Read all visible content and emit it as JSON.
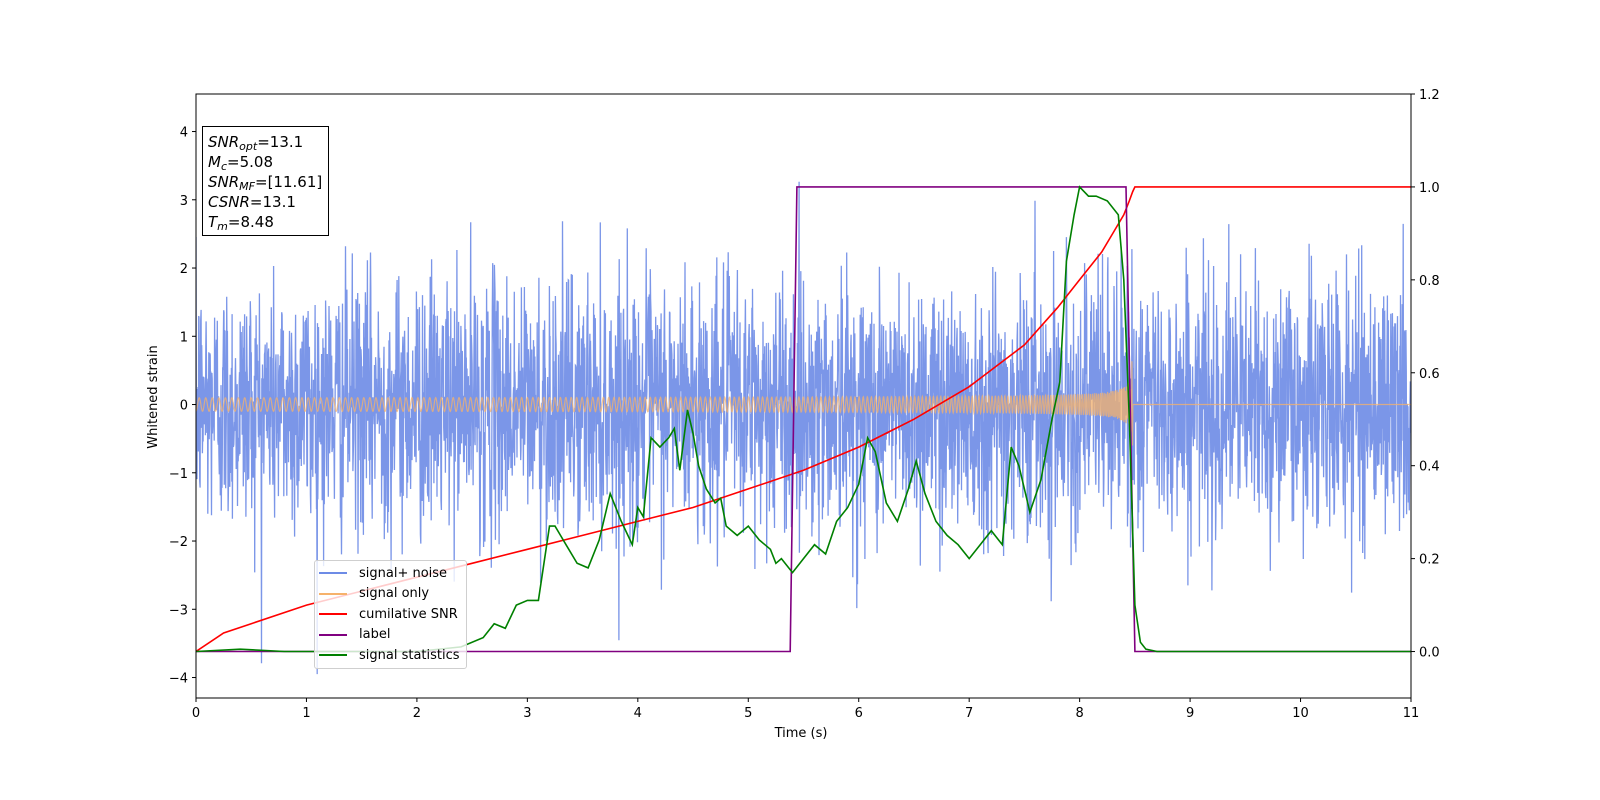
{
  "chart_data": {
    "type": "line",
    "xlabel": "Time (s)",
    "ylabel": "Whitened strain",
    "xlim": [
      0,
      11
    ],
    "ylim_left": [
      -4.3,
      4.55
    ],
    "ylim_right": [
      -0.1,
      1.2
    ],
    "xticks": [
      "0",
      "1",
      "2",
      "3",
      "4",
      "5",
      "6",
      "7",
      "8",
      "9",
      "10",
      "11"
    ],
    "yticks_left": [
      "−4",
      "−3",
      "−2",
      "−1",
      "0",
      "1",
      "2",
      "3",
      "4"
    ],
    "yticks_right": [
      "0.0",
      "0.2",
      "0.4",
      "0.6",
      "0.8",
      "1.0",
      "1.2"
    ],
    "legend_position": "lower-left",
    "grid": false,
    "annotations": {
      "snr_opt": "13.1",
      "mc": "5.08",
      "snr_mf": "[11.61]",
      "csnr": "13.1",
      "tm": "8.48"
    },
    "series": [
      {
        "name": "signal+ noise",
        "axis": "left",
        "color": "#6d8be6",
        "kind": "noise",
        "noise_std": 1.0,
        "signal_end_time": 8.48
      },
      {
        "name": "signal only",
        "axis": "left",
        "color": "#f6b26b",
        "kind": "chirp",
        "amplitude_start": 0.08,
        "amplitude_peak": 0.8,
        "merger_time": 8.48
      },
      {
        "name": "cumilative SNR",
        "axis": "right",
        "color": "#ff0000",
        "x": [
          0,
          0.25,
          0.5,
          1,
          1.5,
          2,
          2.5,
          3,
          3.5,
          4,
          4.5,
          5,
          5.5,
          6,
          6.5,
          7,
          7.5,
          7.8,
          8,
          8.2,
          8.3,
          8.4,
          8.45,
          8.48,
          8.5,
          9,
          10,
          11
        ],
        "values": [
          0.0,
          0.04,
          0.06,
          0.1,
          0.13,
          0.16,
          0.19,
          0.22,
          0.25,
          0.28,
          0.31,
          0.35,
          0.39,
          0.44,
          0.5,
          0.57,
          0.66,
          0.74,
          0.8,
          0.86,
          0.9,
          0.94,
          0.97,
          0.99,
          1.0,
          1.0,
          1.0,
          1.0
        ]
      },
      {
        "name": "label",
        "axis": "right",
        "color": "#800080",
        "x": [
          0,
          5.38,
          5.44,
          8.42,
          8.5,
          11
        ],
        "values": [
          0.0,
          0.0,
          1.0,
          1.0,
          0.0,
          0.0
        ]
      },
      {
        "name": "signal statistics",
        "axis": "right",
        "color": "#008000",
        "x": [
          0,
          0.4,
          0.8,
          1.2,
          1.6,
          2.0,
          2.4,
          2.6,
          2.7,
          2.8,
          2.9,
          3.0,
          3.1,
          3.2,
          3.25,
          3.3,
          3.35,
          3.45,
          3.55,
          3.65,
          3.75,
          3.85,
          3.95,
          4.0,
          4.05,
          4.12,
          4.2,
          4.28,
          4.33,
          4.38,
          4.45,
          4.5,
          4.55,
          4.62,
          4.7,
          4.75,
          4.8,
          4.9,
          5.0,
          5.1,
          5.2,
          5.25,
          5.3,
          5.4,
          5.5,
          5.6,
          5.7,
          5.8,
          5.9,
          6.0,
          6.08,
          6.15,
          6.25,
          6.35,
          6.45,
          6.52,
          6.6,
          6.7,
          6.8,
          6.9,
          7.0,
          7.1,
          7.2,
          7.3,
          7.38,
          7.45,
          7.55,
          7.65,
          7.75,
          7.82,
          7.88,
          7.95,
          8.0,
          8.08,
          8.15,
          8.25,
          8.35,
          8.4,
          8.45,
          8.5,
          8.55,
          8.6,
          8.7,
          9,
          10,
          11
        ],
        "values": [
          0.0,
          0.005,
          0.0,
          0.0,
          0.0,
          0.0,
          0.01,
          0.03,
          0.06,
          0.05,
          0.1,
          0.11,
          0.11,
          0.27,
          0.27,
          0.25,
          0.23,
          0.19,
          0.18,
          0.24,
          0.34,
          0.28,
          0.23,
          0.31,
          0.29,
          0.46,
          0.44,
          0.46,
          0.48,
          0.39,
          0.52,
          0.47,
          0.4,
          0.35,
          0.32,
          0.33,
          0.27,
          0.25,
          0.27,
          0.24,
          0.22,
          0.19,
          0.2,
          0.17,
          0.2,
          0.23,
          0.21,
          0.28,
          0.31,
          0.36,
          0.46,
          0.43,
          0.32,
          0.28,
          0.35,
          0.41,
          0.34,
          0.28,
          0.25,
          0.23,
          0.2,
          0.23,
          0.26,
          0.23,
          0.44,
          0.4,
          0.3,
          0.37,
          0.5,
          0.58,
          0.84,
          0.94,
          1.0,
          0.98,
          0.98,
          0.97,
          0.94,
          0.8,
          0.5,
          0.1,
          0.02,
          0.005,
          0.0,
          0.0,
          0.0,
          0.0
        ]
      }
    ]
  }
}
